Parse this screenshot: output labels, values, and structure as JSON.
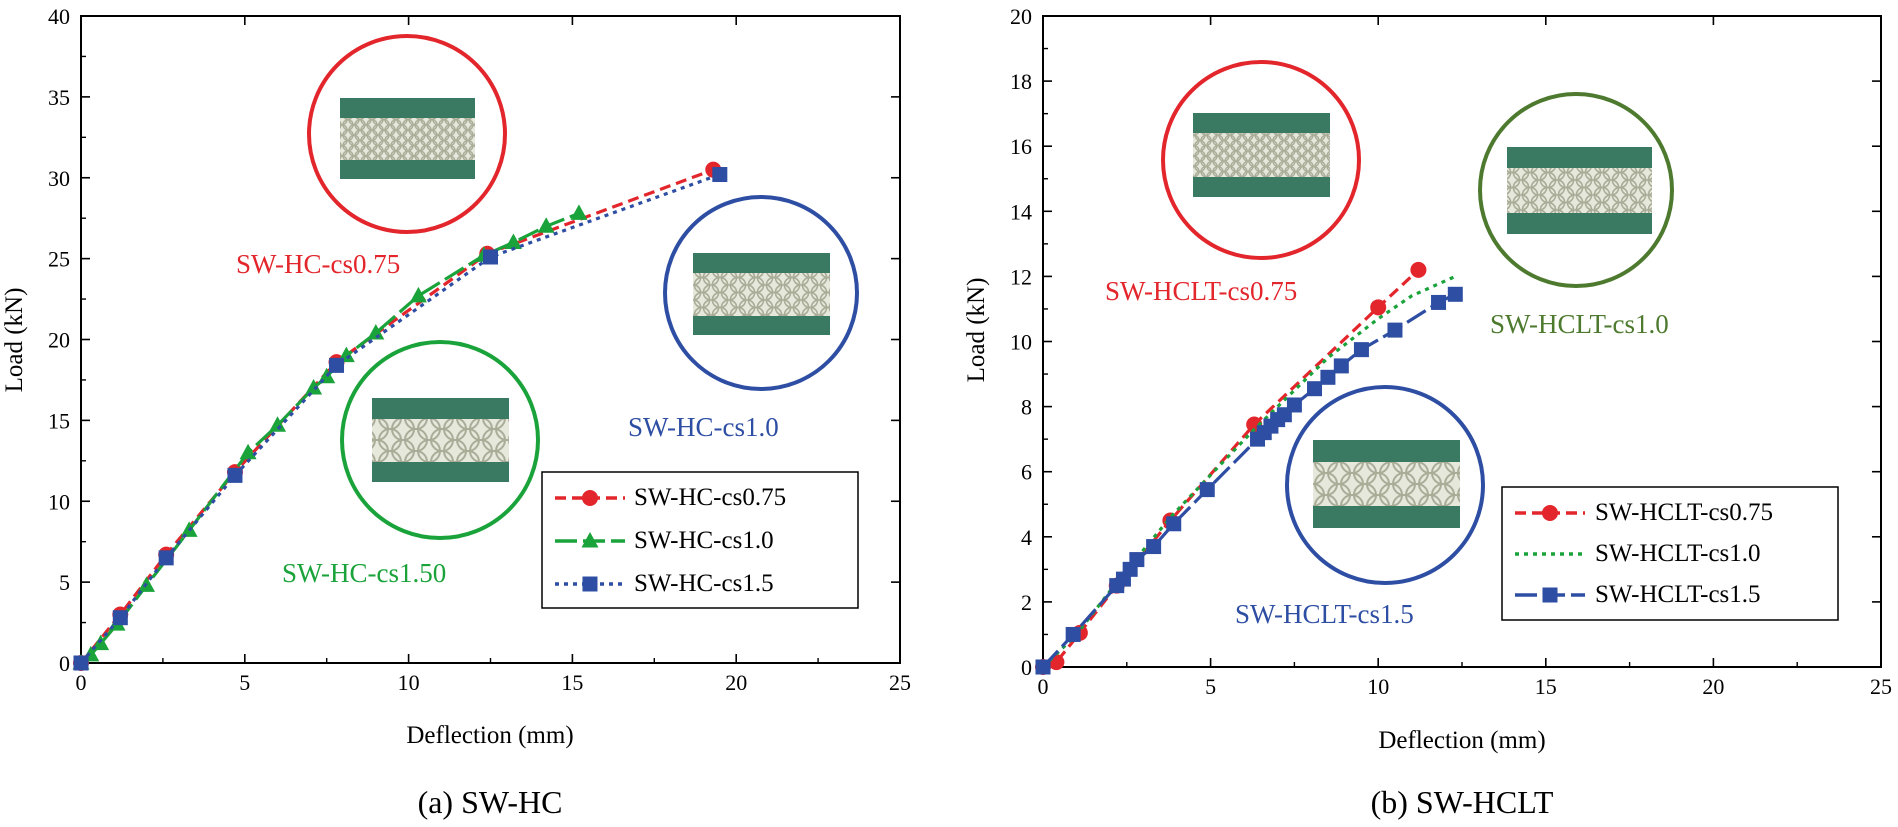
{
  "colors": {
    "red": "#e2262c",
    "green": "#1aa33a",
    "blue": "#2e4ea3",
    "olive": "#4d7a2e",
    "plate": "#3a7a62",
    "core": "#c8ccb8"
  },
  "chart_data": [
    {
      "type": "line",
      "caption": "(a) SW-HC",
      "xlabel": "Deflection (mm)",
      "ylabel": "Load (kN)",
      "xlim": [
        0,
        25
      ],
      "ylim": [
        0,
        40
      ],
      "xticks": [
        "0",
        "5",
        "10",
        "15",
        "20",
        "25"
      ],
      "yticks": [
        "0",
        "5",
        "10",
        "15",
        "20",
        "25",
        "30",
        "35",
        "40"
      ],
      "legend": [
        "SW-HC-cs0.75",
        "SW-HC-cs1.0",
        "SW-HC-cs1.5"
      ],
      "annotations": [
        "SW-HC-cs0.75",
        "SW-HC-cs1.0",
        "SW-HC-cs1.50"
      ],
      "series": [
        {
          "name": "SW-HC-cs0.75",
          "color": "red",
          "marker": "circle",
          "dash": "dash",
          "x": [
            0,
            1.2,
            2.6,
            4.7,
            7.8,
            12.4,
            19.3
          ],
          "y": [
            0,
            3.0,
            6.7,
            11.8,
            18.6,
            25.3,
            30.5
          ]
        },
        {
          "name": "SW-HC-cs1.0",
          "color": "green",
          "marker": "triangle",
          "dash": "longdash",
          "x": [
            0,
            0.3,
            0.6,
            1.1,
            2.0,
            3.3,
            5.1,
            6.0,
            7.1,
            7.5,
            8.1,
            9.0,
            10.3,
            12.3,
            13.2,
            14.2,
            15.2
          ],
          "y": [
            0,
            0.5,
            1.2,
            2.4,
            4.8,
            8.2,
            13.0,
            14.7,
            17.0,
            17.7,
            19.0,
            20.4,
            22.7,
            25.2,
            26.0,
            27.0,
            27.8
          ],
          "marker_step": 1
        },
        {
          "name": "SW-HC-cs1.5",
          "color": "blue",
          "marker": "square",
          "dash": "dot",
          "x": [
            0,
            1.2,
            2.6,
            4.7,
            7.8,
            12.5,
            19.5
          ],
          "y": [
            0,
            2.8,
            6.5,
            11.6,
            18.4,
            25.1,
            30.2
          ]
        }
      ]
    },
    {
      "type": "line",
      "caption": "(b) SW-HCLT",
      "xlabel": "Deflection (mm)",
      "ylabel": "Load (kN)",
      "xlim": [
        0,
        25
      ],
      "ylim": [
        0,
        20
      ],
      "xticks": [
        "0",
        "5",
        "10",
        "15",
        "20",
        "25"
      ],
      "yticks": [
        "0",
        "2",
        "4",
        "6",
        "8",
        "10",
        "12",
        "14",
        "16",
        "18",
        "20"
      ],
      "legend": [
        "SW-HCLT-cs0.75",
        "SW-HCLT-cs1.0",
        "SW-HCLT-cs1.5"
      ],
      "annotations": [
        "SW-HCLT-cs0.75",
        "SW-HCLT-cs1.0",
        "SW-HCLT-cs1.5"
      ],
      "series": [
        {
          "name": "SW-HCLT-cs0.75",
          "color": "red",
          "marker": "circle",
          "dash": "dash",
          "x": [
            0,
            0.4,
            1.1,
            2.2,
            3.8,
            6.3,
            10.0,
            11.2
          ],
          "y": [
            0,
            0.15,
            1.05,
            2.5,
            4.5,
            7.45,
            11.05,
            12.2
          ]
        },
        {
          "name": "SW-HCLT-cs1.0",
          "color": "green",
          "marker": "none",
          "dash": "dot",
          "x": [
            0,
            1.0,
            2.2,
            3.8,
            5.0,
            6.3,
            7.5,
            8.5,
            10.0,
            11.0,
            12.3
          ],
          "y": [
            0,
            1.0,
            2.6,
            4.6,
            5.9,
            7.3,
            8.5,
            9.5,
            10.7,
            11.4,
            12.0
          ]
        },
        {
          "name": "SW-HCLT-cs1.5",
          "color": "blue",
          "marker": "square",
          "dash": "longdash",
          "x": [
            0,
            0.9,
            2.2,
            2.4,
            2.6,
            2.8,
            3.3,
            3.9,
            4.9,
            6.4,
            6.6,
            6.8,
            7.0,
            7.2,
            7.5,
            8.1,
            8.5,
            8.9,
            9.5,
            10.5,
            11.8,
            12.3
          ],
          "y": [
            0,
            1.0,
            2.5,
            2.7,
            3.0,
            3.3,
            3.7,
            4.4,
            5.45,
            7.0,
            7.2,
            7.4,
            7.6,
            7.75,
            8.05,
            8.55,
            8.9,
            9.25,
            9.75,
            10.35,
            11.2,
            11.45
          ]
        }
      ]
    }
  ]
}
